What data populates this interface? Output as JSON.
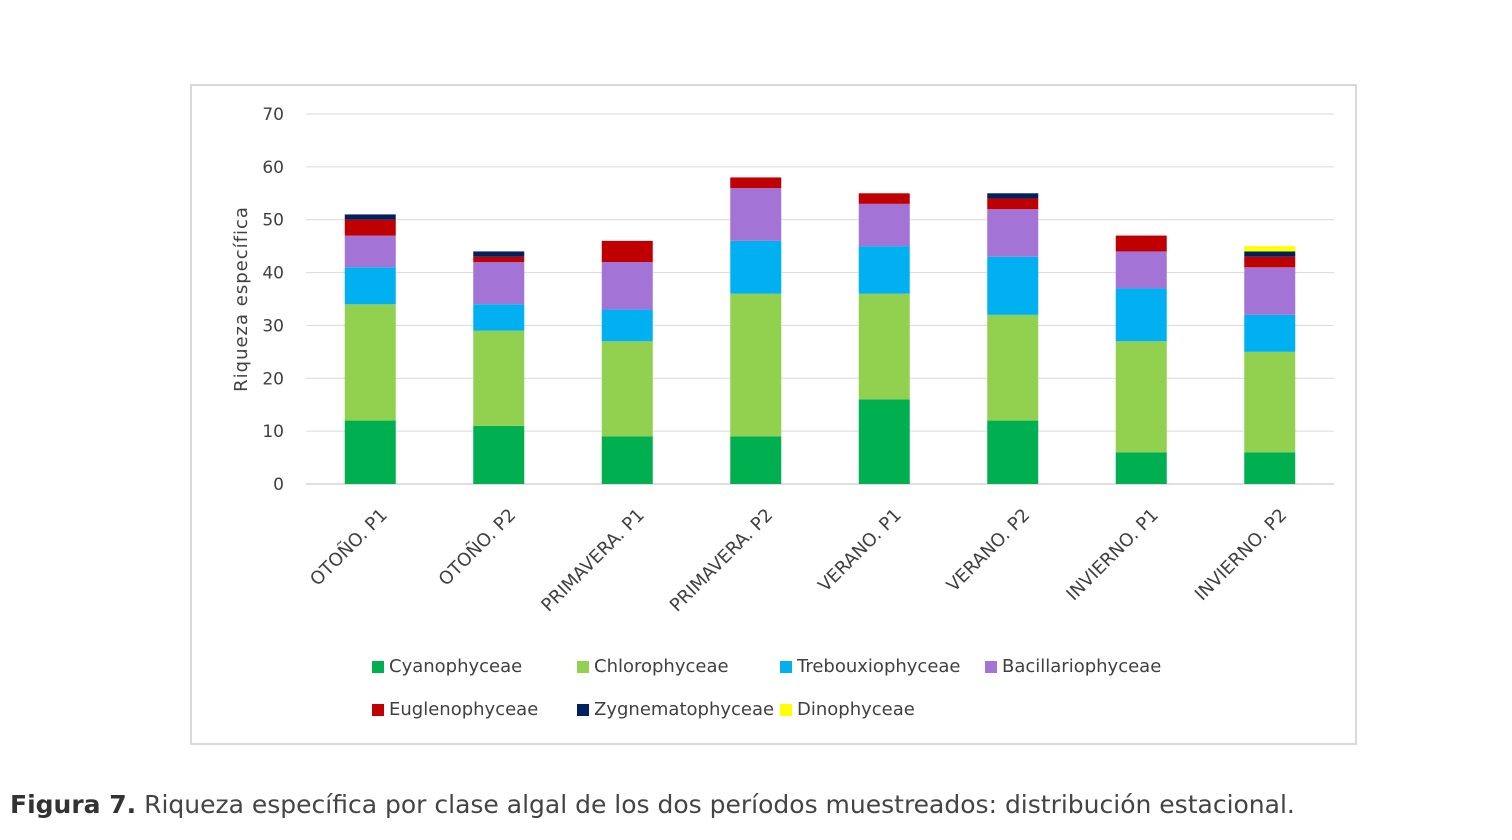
{
  "chart_data": {
    "type": "stacked-bar",
    "title": "",
    "xlabel": "",
    "ylabel": "Riqueza específica",
    "ylim": [
      0,
      70
    ],
    "yticks": [
      0,
      10,
      20,
      30,
      40,
      50,
      60,
      70
    ],
    "grid": true,
    "legend_position": "bottom",
    "categories": [
      "OTOÑO. P1",
      "OTOÑO. P2",
      "PRIMAVERA. P1",
      "PRIMAVERA. P2",
      "VERANO. P1",
      "VERANO. P2",
      "INVIERNO. P1",
      "INVIERNO. P2"
    ],
    "series": [
      {
        "name": "Cyanophyceae",
        "color": "#00b050",
        "values": [
          12,
          11,
          9,
          9,
          16,
          12,
          6,
          6
        ]
      },
      {
        "name": "Chlorophyceae",
        "color": "#92d050",
        "values": [
          22,
          18,
          18,
          27,
          20,
          20,
          21,
          19
        ]
      },
      {
        "name": "Trebouxiophyceae",
        "color": "#00b0f0",
        "values": [
          7,
          5,
          6,
          10,
          9,
          11,
          10,
          7
        ]
      },
      {
        "name": "Bacillariophyceae",
        "color": "#a374d6",
        "values": [
          6,
          8,
          9,
          10,
          8,
          9,
          7,
          9
        ]
      },
      {
        "name": "Euglenophyceae",
        "color": "#c00000",
        "values": [
          3,
          1,
          4,
          2,
          2,
          2,
          3,
          2
        ]
      },
      {
        "name": "Zygnematophyceae",
        "color": "#002060",
        "values": [
          1,
          1,
          0,
          0,
          0,
          1,
          0,
          1
        ]
      },
      {
        "name": "Dinophyceae",
        "color": "#ffff00",
        "values": [
          0,
          0,
          0,
          0,
          0,
          0,
          0,
          1
        ]
      }
    ]
  },
  "caption": {
    "label": "Figura 7.",
    "text": " Riqueza específica por clase algal de los dos períodos muestreados: distribución estacional."
  }
}
